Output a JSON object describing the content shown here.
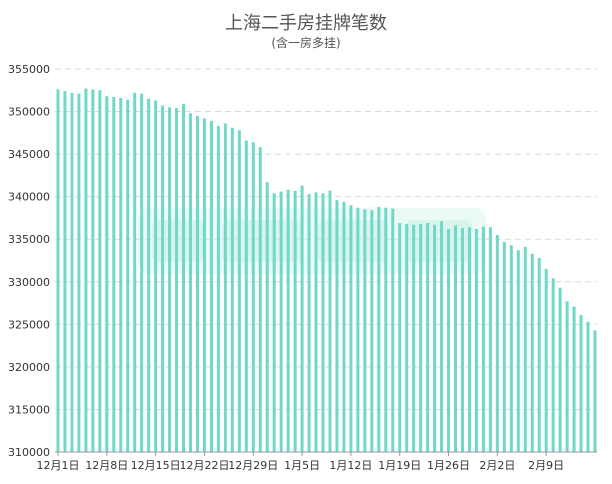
{
  "chart_data": {
    "type": "bar",
    "title": "上海二手房挂牌笔数",
    "subtitle": "(含一房多挂)",
    "xlabel": "",
    "ylabel": "",
    "ylim": [
      310000,
      355000
    ],
    "yticks": [
      355000,
      350000,
      345000,
      340000,
      335000,
      330000,
      325000,
      320000,
      315000,
      310000
    ],
    "ytick_labels": [
      "355000",
      "350000",
      "345000",
      "340000",
      "335000",
      "330000",
      "325000",
      "320000",
      "315000",
      "310000"
    ],
    "x_tick_labels": [
      "12月1日",
      "12月8日",
      "12月15日",
      "12月22日",
      "12月29日",
      "1月5日",
      "1月12日",
      "1月19日",
      "1月26日",
      "2月2日",
      "2月9日"
    ],
    "x_tick_every": 7,
    "grid": "horizontal dashed",
    "bar_color": "#6fd8c6",
    "values": [
      352600,
      352400,
      352200,
      352100,
      352700,
      352600,
      352500,
      351800,
      351700,
      351600,
      351400,
      352200,
      352100,
      351500,
      351300,
      350700,
      350500,
      350400,
      350900,
      349800,
      349500,
      349200,
      348900,
      348300,
      348600,
      348100,
      347800,
      346600,
      346400,
      345800,
      341700,
      340400,
      340600,
      340800,
      340700,
      341300,
      340300,
      340500,
      340400,
      340700,
      339600,
      339400,
      339000,
      338700,
      338500,
      338400,
      338800,
      338700,
      338600,
      336900,
      336800,
      336700,
      336800,
      336900,
      336700,
      337100,
      336200,
      336600,
      336300,
      336400,
      336200,
      336500,
      336400,
      335500,
      334700,
      334300,
      333700,
      334100,
      333300,
      332800,
      331500,
      330400,
      329300,
      327700,
      327100,
      326100,
      325300,
      324300
    ]
  },
  "watermark": "",
  "colors": {
    "axis_text": "#333333",
    "grid": "#d9d9d9",
    "title": "#555555"
  }
}
